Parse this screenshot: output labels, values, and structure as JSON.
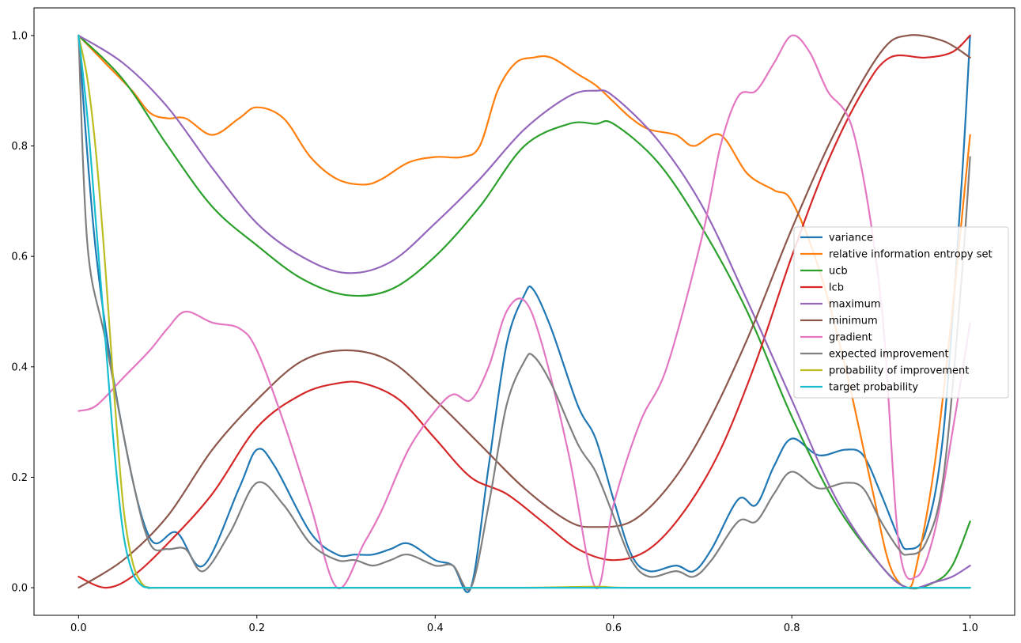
{
  "chart_data": {
    "type": "line",
    "title": "",
    "xlabel": "",
    "ylabel": "",
    "xlim": [
      -0.05,
      1.05
    ],
    "ylim": [
      -0.05,
      1.05
    ],
    "xticks": [
      0.0,
      0.2,
      0.4,
      0.6,
      0.8,
      1.0
    ],
    "xtick_labels": [
      "0.0",
      "0.2",
      "0.4",
      "0.6",
      "0.8",
      "1.0"
    ],
    "yticks": [
      0.0,
      0.2,
      0.4,
      0.6,
      0.8,
      1.0
    ],
    "ytick_labels": [
      "0.0",
      "0.2",
      "0.4",
      "0.6",
      "0.8",
      "1.0"
    ],
    "grid": false,
    "legend_position": "center-right",
    "series": [
      {
        "name": "variance",
        "color": "#1f77b4",
        "x": [
          0,
          0.02,
          0.05,
          0.08,
          0.11,
          0.14,
          0.18,
          0.2,
          0.22,
          0.26,
          0.29,
          0.31,
          0.33,
          0.35,
          0.37,
          0.4,
          0.42,
          0.44,
          0.46,
          0.48,
          0.5,
          0.51,
          0.53,
          0.56,
          0.58,
          0.6,
          0.62,
          0.64,
          0.67,
          0.69,
          0.71,
          0.74,
          0.76,
          0.78,
          0.8,
          0.83,
          0.86,
          0.88,
          0.9,
          0.92,
          0.93,
          0.95,
          0.97,
          0.99,
          1.0
        ],
        "y": [
          1.0,
          0.6,
          0.28,
          0.09,
          0.1,
          0.04,
          0.18,
          0.25,
          0.22,
          0.1,
          0.06,
          0.06,
          0.06,
          0.07,
          0.08,
          0.05,
          0.04,
          0.0,
          0.22,
          0.44,
          0.53,
          0.54,
          0.47,
          0.33,
          0.27,
          0.16,
          0.06,
          0.03,
          0.04,
          0.03,
          0.07,
          0.16,
          0.15,
          0.22,
          0.27,
          0.24,
          0.25,
          0.24,
          0.17,
          0.09,
          0.07,
          0.1,
          0.28,
          0.72,
          1.0
        ]
      },
      {
        "name": "relative information entropy set",
        "color": "#ff7f0e",
        "x": [
          0,
          0.03,
          0.06,
          0.08,
          0.1,
          0.12,
          0.15,
          0.18,
          0.2,
          0.23,
          0.26,
          0.29,
          0.32,
          0.34,
          0.37,
          0.4,
          0.43,
          0.45,
          0.47,
          0.49,
          0.51,
          0.53,
          0.56,
          0.58,
          0.6,
          0.62,
          0.64,
          0.67,
          0.69,
          0.72,
          0.75,
          0.78,
          0.8,
          0.83,
          0.86,
          0.89,
          0.91,
          0.93,
          0.94,
          0.96,
          0.98,
          1.0
        ],
        "y": [
          1.0,
          0.95,
          0.9,
          0.86,
          0.85,
          0.85,
          0.82,
          0.85,
          0.87,
          0.85,
          0.78,
          0.74,
          0.73,
          0.74,
          0.77,
          0.78,
          0.78,
          0.8,
          0.9,
          0.95,
          0.96,
          0.96,
          0.93,
          0.91,
          0.88,
          0.85,
          0.83,
          0.82,
          0.8,
          0.82,
          0.75,
          0.72,
          0.7,
          0.58,
          0.4,
          0.18,
          0.04,
          0.0,
          0.04,
          0.22,
          0.5,
          0.82
        ]
      },
      {
        "name": "ucb",
        "color": "#2ca02c",
        "x": [
          0,
          0.05,
          0.1,
          0.15,
          0.2,
          0.25,
          0.3,
          0.35,
          0.4,
          0.45,
          0.5,
          0.55,
          0.58,
          0.6,
          0.65,
          0.7,
          0.75,
          0.8,
          0.85,
          0.9,
          0.93,
          0.96,
          0.98,
          1.0
        ],
        "y": [
          1.0,
          0.92,
          0.8,
          0.69,
          0.62,
          0.56,
          0.53,
          0.54,
          0.6,
          0.69,
          0.8,
          0.84,
          0.84,
          0.84,
          0.77,
          0.65,
          0.5,
          0.31,
          0.15,
          0.04,
          0.0,
          0.01,
          0.04,
          0.12
        ]
      },
      {
        "name": "lcb",
        "color": "#d62728",
        "x": [
          0,
          0.03,
          0.06,
          0.1,
          0.15,
          0.2,
          0.25,
          0.29,
          0.32,
          0.36,
          0.4,
          0.44,
          0.48,
          0.52,
          0.56,
          0.6,
          0.64,
          0.68,
          0.72,
          0.76,
          0.8,
          0.84,
          0.88,
          0.91,
          0.95,
          0.98,
          1.0
        ],
        "y": [
          0.02,
          0.0,
          0.02,
          0.08,
          0.17,
          0.29,
          0.35,
          0.37,
          0.37,
          0.34,
          0.27,
          0.2,
          0.17,
          0.12,
          0.07,
          0.05,
          0.07,
          0.14,
          0.25,
          0.41,
          0.6,
          0.77,
          0.9,
          0.96,
          0.96,
          0.97,
          1.0
        ]
      },
      {
        "name": "maximum",
        "color": "#9467bd",
        "x": [
          0,
          0.05,
          0.1,
          0.15,
          0.2,
          0.25,
          0.3,
          0.35,
          0.4,
          0.45,
          0.5,
          0.55,
          0.58,
          0.6,
          0.65,
          0.7,
          0.75,
          0.8,
          0.85,
          0.9,
          0.93,
          0.96,
          0.98,
          1.0
        ],
        "y": [
          1.0,
          0.95,
          0.87,
          0.76,
          0.66,
          0.6,
          0.57,
          0.59,
          0.66,
          0.74,
          0.83,
          0.89,
          0.9,
          0.89,
          0.81,
          0.69,
          0.52,
          0.34,
          0.16,
          0.04,
          0.0,
          0.01,
          0.02,
          0.04
        ]
      },
      {
        "name": "minimum",
        "color": "#8c564b",
        "x": [
          0,
          0.05,
          0.1,
          0.15,
          0.2,
          0.25,
          0.3,
          0.35,
          0.4,
          0.45,
          0.5,
          0.55,
          0.58,
          0.62,
          0.66,
          0.7,
          0.75,
          0.8,
          0.85,
          0.9,
          0.93,
          0.97,
          1.0
        ],
        "y": [
          0.0,
          0.05,
          0.13,
          0.25,
          0.34,
          0.41,
          0.43,
          0.41,
          0.34,
          0.26,
          0.18,
          0.12,
          0.11,
          0.12,
          0.18,
          0.28,
          0.45,
          0.65,
          0.83,
          0.97,
          1.0,
          0.99,
          0.96
        ]
      },
      {
        "name": "gradient",
        "color": "#e377c2",
        "x": [
          0,
          0.02,
          0.05,
          0.08,
          0.1,
          0.12,
          0.15,
          0.18,
          0.2,
          0.23,
          0.26,
          0.29,
          0.32,
          0.34,
          0.37,
          0.4,
          0.42,
          0.44,
          0.46,
          0.48,
          0.5,
          0.52,
          0.55,
          0.58,
          0.6,
          0.63,
          0.66,
          0.7,
          0.72,
          0.74,
          0.76,
          0.78,
          0.8,
          0.82,
          0.84,
          0.87,
          0.9,
          0.92,
          0.94,
          0.96,
          0.98,
          1.0
        ],
        "y": [
          0.32,
          0.33,
          0.38,
          0.43,
          0.47,
          0.5,
          0.48,
          0.47,
          0.43,
          0.3,
          0.15,
          0.0,
          0.08,
          0.14,
          0.25,
          0.32,
          0.35,
          0.34,
          0.4,
          0.5,
          0.52,
          0.44,
          0.24,
          0.0,
          0.15,
          0.3,
          0.4,
          0.64,
          0.8,
          0.89,
          0.9,
          0.95,
          1.0,
          0.97,
          0.9,
          0.82,
          0.52,
          0.08,
          0.02,
          0.1,
          0.28,
          0.48
        ]
      },
      {
        "name": "expected improvement",
        "color": "#7f7f7f",
        "x": [
          0,
          0.01,
          0.03,
          0.06,
          0.08,
          0.1,
          0.12,
          0.14,
          0.17,
          0.2,
          0.23,
          0.26,
          0.29,
          0.31,
          0.33,
          0.35,
          0.37,
          0.4,
          0.42,
          0.44,
          0.46,
          0.48,
          0.5,
          0.51,
          0.53,
          0.56,
          0.58,
          0.6,
          0.62,
          0.64,
          0.67,
          0.69,
          0.71,
          0.74,
          0.76,
          0.78,
          0.8,
          0.83,
          0.86,
          0.88,
          0.9,
          0.92,
          0.93,
          0.95,
          0.97,
          0.99,
          1.0
        ],
        "y": [
          1.0,
          0.62,
          0.45,
          0.2,
          0.08,
          0.07,
          0.07,
          0.03,
          0.1,
          0.19,
          0.15,
          0.08,
          0.05,
          0.05,
          0.04,
          0.05,
          0.06,
          0.04,
          0.04,
          0.0,
          0.15,
          0.33,
          0.41,
          0.42,
          0.37,
          0.26,
          0.21,
          0.13,
          0.05,
          0.02,
          0.03,
          0.02,
          0.05,
          0.12,
          0.12,
          0.17,
          0.21,
          0.18,
          0.19,
          0.18,
          0.12,
          0.07,
          0.06,
          0.08,
          0.2,
          0.55,
          0.78
        ]
      },
      {
        "name": "probability of improvement",
        "color": "#bcbd22",
        "x": [
          0,
          0.01,
          0.02,
          0.03,
          0.04,
          0.05,
          0.06,
          0.07,
          0.08,
          0.1,
          0.3,
          0.5,
          0.58,
          0.62,
          0.8,
          1.0
        ],
        "y": [
          1.0,
          0.92,
          0.78,
          0.58,
          0.35,
          0.15,
          0.05,
          0.01,
          0.0,
          0.0,
          0.0,
          0.0,
          0.002,
          0.0,
          0.0,
          0.0
        ]
      },
      {
        "name": "target probability",
        "color": "#17becf",
        "x": [
          0,
          0.01,
          0.02,
          0.03,
          0.04,
          0.05,
          0.06,
          0.07,
          0.08,
          0.1,
          0.3,
          0.6,
          0.8,
          1.0
        ],
        "y": [
          1.0,
          0.85,
          0.65,
          0.45,
          0.25,
          0.1,
          0.03,
          0.005,
          0.0,
          0.0,
          0.0,
          0.0,
          0.0,
          0.0
        ]
      }
    ]
  }
}
